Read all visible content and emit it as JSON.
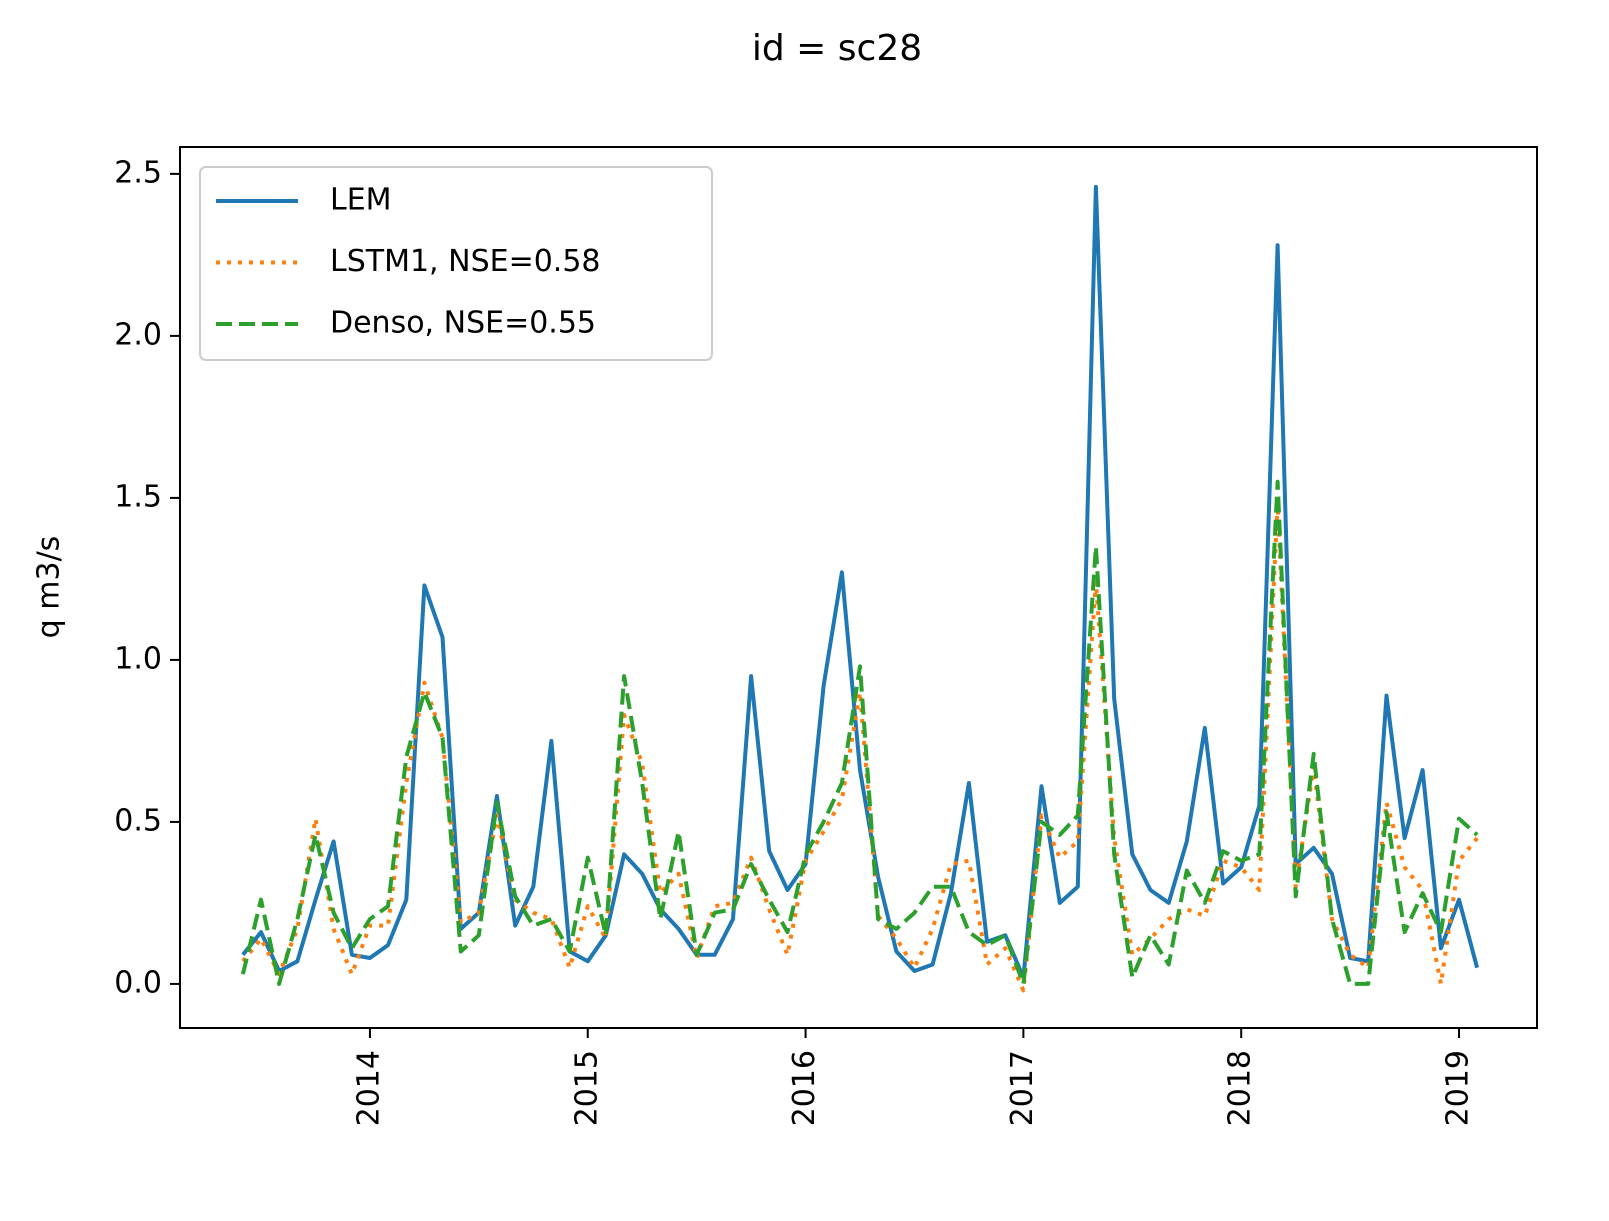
{
  "chart_data": {
    "type": "line",
    "title": "id = sc28",
    "ylabel": "q m3/s",
    "x": [
      2013.417,
      2013.5,
      2013.583,
      2013.667,
      2013.75,
      2013.833,
      2013.917,
      2014,
      2014.083,
      2014.167,
      2014.25,
      2014.333,
      2014.417,
      2014.5,
      2014.583,
      2014.667,
      2014.75,
      2014.833,
      2014.917,
      2015,
      2015.083,
      2015.167,
      2015.25,
      2015.333,
      2015.417,
      2015.5,
      2015.583,
      2015.667,
      2015.75,
      2015.833,
      2015.917,
      2016,
      2016.083,
      2016.167,
      2016.25,
      2016.333,
      2016.417,
      2016.5,
      2016.583,
      2016.667,
      2016.75,
      2016.833,
      2016.917,
      2017,
      2017.083,
      2017.167,
      2017.25,
      2017.333,
      2017.417,
      2017.5,
      2017.583,
      2017.667,
      2017.75,
      2017.833,
      2017.917,
      2018,
      2018.083,
      2018.167,
      2018.25,
      2018.333,
      2018.417,
      2018.5,
      2018.583,
      2018.667,
      2018.75,
      2018.833,
      2018.917,
      2019,
      2019.083
    ],
    "series": [
      {
        "name": "LEM",
        "color": "#1f77b4",
        "linestyle": "solid",
        "values": [
          0.09,
          0.16,
          0.04,
          0.07,
          0.26,
          0.44,
          0.09,
          0.08,
          0.12,
          0.26,
          1.23,
          1.07,
          0.17,
          0.22,
          0.58,
          0.18,
          0.3,
          0.75,
          0.1,
          0.07,
          0.15,
          0.4,
          0.34,
          0.23,
          0.17,
          0.09,
          0.09,
          0.2,
          0.95,
          0.41,
          0.29,
          0.37,
          0.92,
          1.27,
          0.66,
          0.33,
          0.1,
          0.04,
          0.06,
          0.28,
          0.62,
          0.13,
          0.15,
          0.02,
          0.61,
          0.25,
          0.3,
          2.46,
          0.88,
          0.4,
          0.29,
          0.25,
          0.44,
          0.79,
          0.31,
          0.36,
          0.55,
          2.28,
          0.37,
          0.42,
          0.34,
          0.08,
          0.07,
          0.89,
          0.45,
          0.66,
          0.11,
          0.26,
          0.05
        ]
      },
      {
        "name": "LSTM1, NSE=0.58",
        "color": "#ff7f0e",
        "linestyle": "dotted",
        "values": [
          0.07,
          0.14,
          0.03,
          0.17,
          0.51,
          0.17,
          0.03,
          0.18,
          0.18,
          0.62,
          0.93,
          0.76,
          0.19,
          0.22,
          0.52,
          0.26,
          0.22,
          0.2,
          0.05,
          0.24,
          0.14,
          0.83,
          0.68,
          0.28,
          0.34,
          0.08,
          0.24,
          0.25,
          0.39,
          0.23,
          0.09,
          0.38,
          0.47,
          0.57,
          0.9,
          0.21,
          0.14,
          0.05,
          0.17,
          0.37,
          0.38,
          0.06,
          0.11,
          -0.02,
          0.52,
          0.39,
          0.44,
          1.24,
          0.45,
          0.09,
          0.14,
          0.2,
          0.23,
          0.21,
          0.38,
          0.36,
          0.29,
          1.48,
          0.3,
          0.67,
          0.2,
          0.09,
          0.05,
          0.56,
          0.36,
          0.29,
          0.0,
          0.38,
          0.45
        ]
      },
      {
        "name": "Denso, NSE=0.55",
        "color": "#2ca02c",
        "linestyle": "dashed",
        "values": [
          0.03,
          0.26,
          0.0,
          0.2,
          0.46,
          0.22,
          0.11,
          0.2,
          0.24,
          0.7,
          0.9,
          0.76,
          0.1,
          0.15,
          0.56,
          0.27,
          0.18,
          0.2,
          0.1,
          0.39,
          0.15,
          0.95,
          0.62,
          0.2,
          0.47,
          0.09,
          0.22,
          0.23,
          0.37,
          0.26,
          0.16,
          0.4,
          0.5,
          0.62,
          0.98,
          0.2,
          0.17,
          0.22,
          0.3,
          0.3,
          0.16,
          0.12,
          0.15,
          0.0,
          0.5,
          0.46,
          0.52,
          1.35,
          0.4,
          0.02,
          0.15,
          0.06,
          0.35,
          0.25,
          0.41,
          0.38,
          0.4,
          1.55,
          0.27,
          0.71,
          0.2,
          0.0,
          0.0,
          0.53,
          0.16,
          0.28,
          0.16,
          0.51,
          0.46
        ]
      }
    ],
    "xlim": [
      2013.128,
      2019.358
    ],
    "xticks": [
      2014,
      2015,
      2016,
      2017,
      2018,
      2019
    ],
    "ylim": [
      -0.136,
      2.583
    ],
    "yticks": [
      {
        "value": 0,
        "label": "0.0"
      },
      0.5,
      {
        "value": 1,
        "label": "1.0"
      },
      1.5,
      {
        "value": 2,
        "label": "2.0"
      },
      2.5
    ],
    "legend": "upper left",
    "grid": false
  }
}
